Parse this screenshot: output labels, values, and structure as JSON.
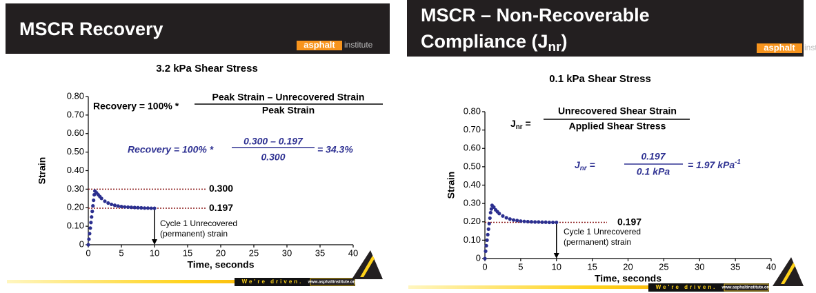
{
  "branding": {
    "logo_main": "asphalt",
    "logo_sub": "institute",
    "tagline": "We're driven.",
    "url": "www.asphaltinstitute.org"
  },
  "chart_data": [
    {
      "type": "scatter",
      "header_title": [
        "MSCR Recovery"
      ],
      "title": "3.2 kPa Shear Stress",
      "x_label": "Time, seconds",
      "y_label": "Strain",
      "color": "#2b2f8f",
      "x": [
        0,
        0.1,
        0.2,
        0.3,
        0.4,
        0.5,
        0.6,
        0.7,
        0.8,
        0.9,
        1.0,
        1.25,
        1.5,
        1.75,
        2,
        2.5,
        3,
        3.5,
        4,
        4.5,
        5,
        5.5,
        6,
        6.5,
        7,
        7.5,
        8,
        8.5,
        9,
        9.5,
        10
      ],
      "values": [
        0,
        0.03,
        0.06,
        0.09,
        0.12,
        0.15,
        0.18,
        0.21,
        0.24,
        0.27,
        0.29,
        0.28,
        0.27,
        0.26,
        0.25,
        0.235,
        0.225,
        0.218,
        0.213,
        0.209,
        0.206,
        0.204,
        0.203,
        0.202,
        0.201,
        0.2,
        0.199,
        0.198,
        0.198,
        0.197,
        0.197
      ],
      "xlim": [
        0,
        40
      ],
      "xticks": [
        0,
        5,
        10,
        15,
        20,
        25,
        30,
        35,
        40
      ],
      "ylim": [
        0,
        0.8
      ],
      "yticks": [
        0,
        {
          "value": 0.1,
          "label": "0.10"
        },
        {
          "value": 0.2,
          "label": "0.20"
        },
        {
          "value": 0.3,
          "label": "0.30"
        },
        {
          "value": 0.4,
          "label": "0.40"
        },
        {
          "value": 0.5,
          "label": "0.50"
        },
        {
          "value": 0.6,
          "label": "0.60"
        },
        {
          "value": 0.7,
          "label": "0.70"
        },
        {
          "value": 0.8,
          "label": "0.80"
        }
      ],
      "reference_lines": [
        {
          "value": 0.3,
          "label": "0.300"
        },
        {
          "value": 0.197,
          "label": "0.197"
        }
      ],
      "annotation": [
        "Cycle 1 Unrecovered",
        "(permanent) strain"
      ],
      "formula": {
        "lhs": "Recovery = 100%  *",
        "numerator": "Peak Strain – Unrecovered Strain",
        "denominator": "Peak Strain"
      },
      "example": {
        "lhs": "Recovery  = 100% *",
        "numerator": "0.300 – 0.197",
        "denominator": "0.300",
        "rhs": "= 34.3%"
      }
    },
    {
      "type": "scatter",
      "header_title": [
        "MSCR – Non-Recoverable",
        [
          "Compliance (J",
          "nr",
          ")"
        ]
      ],
      "title": "0.1 kPa Shear Stress",
      "x_label": "Time, seconds",
      "y_label": "Strain",
      "color": "#2b2f8f",
      "x": [
        0,
        0.1,
        0.2,
        0.3,
        0.4,
        0.5,
        0.6,
        0.7,
        0.8,
        0.9,
        1.0,
        1.25,
        1.5,
        1.75,
        2,
        2.5,
        3,
        3.5,
        4,
        4.5,
        5,
        5.5,
        6,
        6.5,
        7,
        7.5,
        8,
        8.5,
        9,
        9.5,
        10
      ],
      "values": [
        0,
        0.04,
        0.07,
        0.1,
        0.13,
        0.16,
        0.19,
        0.22,
        0.25,
        0.27,
        0.29,
        0.28,
        0.265,
        0.255,
        0.245,
        0.232,
        0.222,
        0.215,
        0.21,
        0.207,
        0.204,
        0.202,
        0.201,
        0.2,
        0.199,
        0.199,
        0.198,
        0.198,
        0.197,
        0.197,
        0.197
      ],
      "xlim": [
        0,
        40
      ],
      "xticks": [
        0,
        5,
        10,
        15,
        20,
        25,
        30,
        35,
        40
      ],
      "ylim": [
        0,
        0.8
      ],
      "yticks": [
        0,
        {
          "value": 0.1,
          "label": "0.10"
        },
        {
          "value": 0.2,
          "label": "0.20"
        },
        {
          "value": 0.3,
          "label": "0.30"
        },
        {
          "value": 0.4,
          "label": "0.40"
        },
        {
          "value": 0.5,
          "label": "0.50"
        },
        {
          "value": 0.6,
          "label": "0.60"
        },
        {
          "value": 0.7,
          "label": "0.70"
        },
        {
          "value": 0.8,
          "label": "0.80"
        }
      ],
      "reference_lines": [
        {
          "value": 0.197,
          "label": "0.197"
        }
      ],
      "annotation": [
        "Cycle 1 Unrecovered",
        "(permanent) strain"
      ],
      "formula": {
        "lhs": [
          "J",
          "nr",
          " ="
        ],
        "numerator": "Unrecovered Shear Strain",
        "denominator": "Applied Shear Stress"
      },
      "example": {
        "lhs": [
          "J",
          "nr",
          " ="
        ],
        "numerator": "0.197",
        "denominator": "0.1 kPa",
        "rhs": [
          "= 1.97 kPa",
          "-1"
        ]
      }
    }
  ]
}
